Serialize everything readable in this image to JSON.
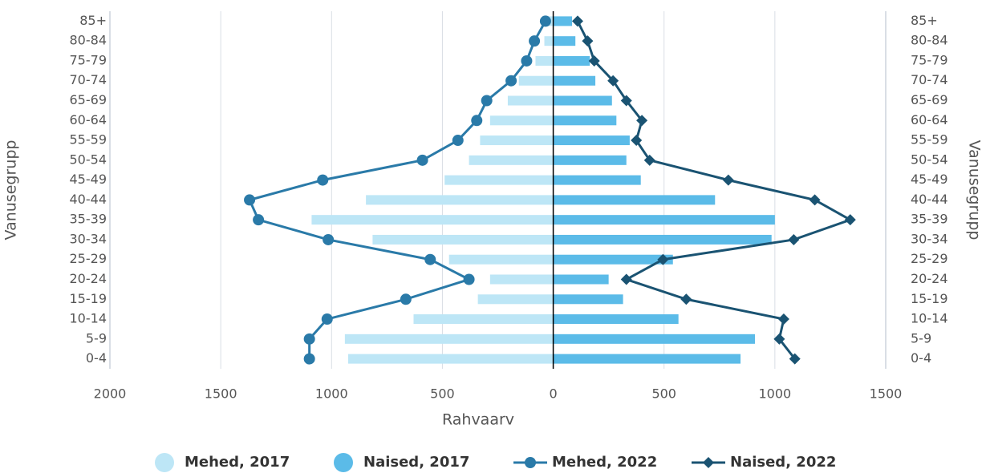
{
  "chart_data": {
    "type": "population_pyramid",
    "xlabel": "Rahvaarv",
    "ylabel": "Vanusegrupp",
    "categories": [
      "0-4",
      "5-9",
      "10-14",
      "15-19",
      "20-24",
      "25-29",
      "30-34",
      "35-39",
      "40-44",
      "45-49",
      "50-54",
      "55-59",
      "60-64",
      "65-69",
      "70-74",
      "75-79",
      "80-84",
      "85+"
    ],
    "xlim": [
      -2000,
      1500
    ],
    "xticks": [
      {
        "value": -2000,
        "label": "2000"
      },
      {
        "value": -1500,
        "label": "1500"
      },
      {
        "value": -1000,
        "label": "1000"
      },
      {
        "value": -500,
        "label": "500"
      },
      0,
      500,
      1000,
      1500
    ],
    "grid": true,
    "series": [
      {
        "name": "Mehed, 2017",
        "style": "bar",
        "side": "left",
        "color": "#bde6f6",
        "values": [
          925,
          940,
          630,
          340,
          285,
          470,
          815,
          1090,
          845,
          490,
          380,
          330,
          285,
          205,
          155,
          80,
          40,
          30
        ]
      },
      {
        "name": "Naised, 2017",
        "style": "bar",
        "side": "right",
        "color": "#5bbbe8",
        "values": [
          845,
          910,
          565,
          315,
          250,
          540,
          985,
          1000,
          730,
          395,
          330,
          345,
          285,
          265,
          190,
          165,
          100,
          85
        ]
      },
      {
        "name": "Mehed, 2022",
        "style": "line",
        "marker": "circle",
        "side": "left",
        "color": "#2a7aa8",
        "values": [
          1100,
          1100,
          1020,
          665,
          380,
          555,
          1015,
          1330,
          1370,
          1040,
          590,
          430,
          345,
          300,
          190,
          120,
          85,
          35
        ]
      },
      {
        "name": "Naised, 2022",
        "style": "line",
        "marker": "diamond",
        "side": "right",
        "color": "#1a5372",
        "values": [
          1090,
          1020,
          1040,
          600,
          330,
          495,
          1085,
          1340,
          1180,
          790,
          435,
          375,
          400,
          330,
          270,
          185,
          155,
          110
        ]
      }
    ]
  }
}
